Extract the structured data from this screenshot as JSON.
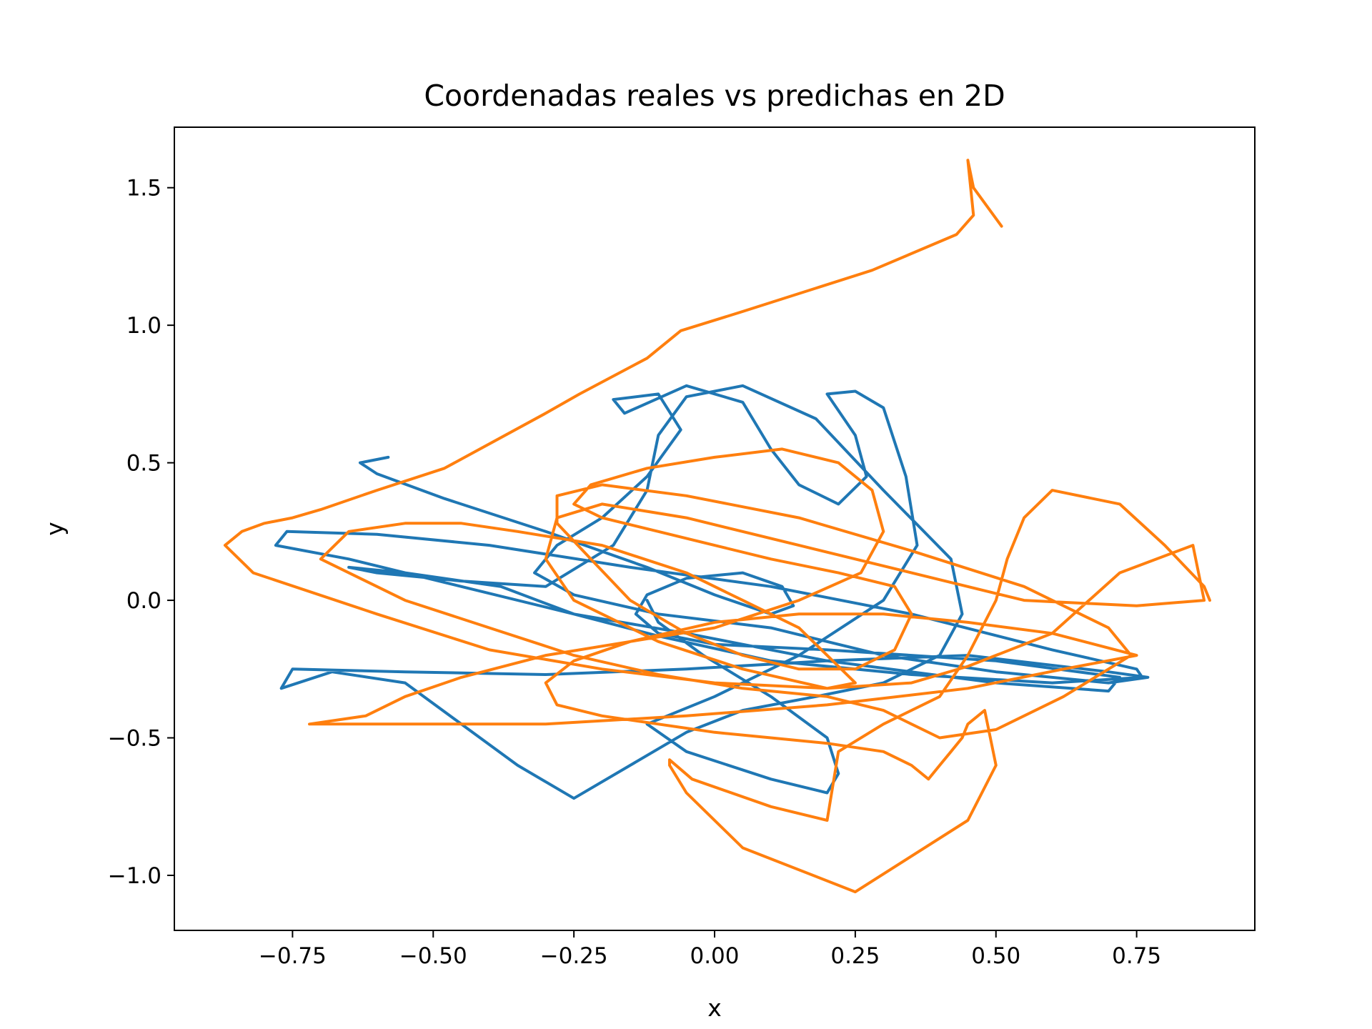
{
  "chart_data": {
    "type": "line",
    "title": "Coordenadas reales vs predichas en 2D",
    "xlabel": "x",
    "ylabel": "y",
    "xlim": [
      -0.96,
      0.96
    ],
    "ylim": [
      -1.2,
      1.72
    ],
    "x_ticks": [
      -0.75,
      -0.5,
      -0.25,
      0.0,
      0.25,
      0.5,
      0.75
    ],
    "x_tick_labels": [
      "−0.75",
      "−0.50",
      "−0.25",
      "0.00",
      "0.25",
      "0.50",
      "0.75"
    ],
    "y_ticks": [
      -1.0,
      -0.5,
      0.0,
      0.5,
      1.0,
      1.5
    ],
    "y_tick_labels": [
      "−1.0",
      "−0.5",
      "0.0",
      "0.5",
      "1.0",
      "1.5"
    ],
    "grid": false,
    "legend": "none",
    "series": [
      {
        "color": "#1f77b4",
        "x": [
          -0.58,
          -0.63,
          -0.6,
          -0.48,
          -0.3,
          -0.12,
          0.0,
          0.1,
          0.14,
          0.12,
          0.05,
          -0.05,
          -0.12,
          -0.14,
          -0.1,
          0.0,
          0.2,
          0.5,
          0.72,
          0.7,
          0.5,
          0.2,
          -0.05,
          -0.25,
          -0.45,
          -0.65,
          -0.78,
          -0.76,
          -0.6,
          -0.4,
          -0.15,
          0.1,
          0.35,
          0.6,
          0.75,
          0.76,
          0.6,
          0.35,
          0.1,
          -0.1,
          -0.25,
          -0.38,
          -0.55,
          -0.65,
          -0.6,
          -0.45,
          -0.3,
          -0.18,
          -0.12,
          -0.1,
          -0.05,
          0.05,
          0.18,
          0.3,
          0.42,
          0.44,
          0.4,
          0.3,
          0.18,
          0.05,
          -0.05,
          -0.15,
          -0.25,
          -0.35,
          -0.45,
          -0.55,
          -0.68,
          -0.77,
          -0.75,
          -0.55,
          -0.3,
          -0.05,
          0.2,
          0.45,
          0.7,
          0.77,
          0.7,
          0.5,
          0.3,
          0.1,
          -0.1,
          -0.25,
          -0.32,
          -0.28,
          -0.2,
          -0.12,
          -0.06,
          -0.1,
          -0.18,
          -0.16,
          -0.05,
          0.05,
          0.1,
          0.15,
          0.22,
          0.27,
          0.25,
          0.2,
          0.25,
          0.3,
          0.34,
          0.36,
          0.3,
          0.15,
          0.0,
          -0.12,
          -0.05,
          0.1,
          0.2,
          0.22,
          0.2,
          0.1,
          -0.02,
          -0.1,
          -0.12
        ],
        "y": [
          0.52,
          0.5,
          0.46,
          0.37,
          0.25,
          0.12,
          0.02,
          -0.05,
          -0.02,
          0.05,
          0.1,
          0.08,
          0.02,
          -0.05,
          -0.12,
          -0.16,
          -0.18,
          -0.22,
          -0.28,
          -0.33,
          -0.3,
          -0.22,
          -0.12,
          -0.05,
          0.05,
          0.15,
          0.2,
          0.25,
          0.24,
          0.2,
          0.12,
          0.05,
          -0.05,
          -0.18,
          -0.25,
          -0.28,
          -0.3,
          -0.27,
          -0.22,
          -0.13,
          -0.05,
          0.05,
          0.1,
          0.12,
          0.1,
          0.07,
          0.05,
          0.2,
          0.4,
          0.6,
          0.74,
          0.78,
          0.66,
          0.4,
          0.15,
          -0.05,
          -0.2,
          -0.3,
          -0.35,
          -0.4,
          -0.48,
          -0.6,
          -0.72,
          -0.6,
          -0.45,
          -0.3,
          -0.26,
          -0.32,
          -0.25,
          -0.26,
          -0.27,
          -0.25,
          -0.22,
          -0.2,
          -0.26,
          -0.28,
          -0.3,
          -0.26,
          -0.2,
          -0.1,
          -0.05,
          0.02,
          0.1,
          0.2,
          0.3,
          0.45,
          0.62,
          0.75,
          0.73,
          0.68,
          0.78,
          0.72,
          0.55,
          0.42,
          0.35,
          0.45,
          0.6,
          0.75,
          0.76,
          0.7,
          0.45,
          0.2,
          0.0,
          -0.2,
          -0.35,
          -0.45,
          -0.55,
          -0.65,
          -0.7,
          -0.63,
          -0.5,
          -0.35,
          -0.2,
          -0.08,
          0.0
        ]
      },
      {
        "color": "#ff7f0e",
        "x": [
          0.51,
          0.46,
          0.45,
          0.46,
          0.43,
          0.28,
          0.05,
          -0.06,
          -0.12,
          -0.24,
          -0.3,
          -0.48,
          -0.6,
          -0.7,
          -0.75,
          -0.8,
          -0.84,
          -0.87,
          -0.82,
          -0.6,
          -0.4,
          -0.2,
          0.0,
          0.2,
          0.35,
          0.45,
          0.6,
          0.72,
          0.85,
          0.87,
          0.75,
          0.55,
          0.35,
          0.15,
          -0.05,
          -0.2,
          -0.28,
          -0.3,
          -0.25,
          -0.1,
          0.05,
          0.2,
          0.25,
          0.2,
          0.15,
          0.05,
          -0.05,
          -0.2,
          -0.35,
          -0.45,
          -0.55,
          -0.65,
          -0.7,
          -0.55,
          -0.4,
          -0.25,
          -0.1,
          0.05,
          0.2,
          0.3,
          0.35,
          0.4,
          0.5,
          0.62,
          0.74,
          0.7,
          0.55,
          0.35,
          0.15,
          -0.05,
          -0.2,
          -0.28,
          -0.28,
          -0.22,
          -0.15,
          -0.05,
          0.05,
          0.15,
          0.25,
          0.32,
          0.35,
          0.32,
          0.22,
          0.1,
          0.0,
          -0.1,
          -0.2,
          -0.25,
          -0.22,
          -0.12,
          0.0,
          0.12,
          0.22,
          0.28,
          0.3,
          0.26,
          0.15,
          0.0,
          -0.15,
          -0.3,
          -0.45,
          -0.55,
          -0.62,
          -0.72,
          -0.55,
          -0.3,
          -0.05,
          0.2,
          0.45,
          0.62,
          0.75,
          0.6,
          0.45,
          0.3,
          0.15,
          0.0,
          -0.15,
          -0.25,
          -0.3,
          -0.28,
          -0.2,
          -0.1,
          0.0,
          0.1,
          0.2,
          0.3,
          0.35,
          0.38,
          0.4,
          0.42,
          0.44,
          0.45,
          0.48,
          0.5,
          0.45,
          0.25,
          0.05,
          -0.05,
          -0.08,
          -0.08,
          -0.04,
          0.1,
          0.2,
          0.22,
          0.3,
          0.4,
          0.45,
          0.5,
          0.52,
          0.55,
          0.6,
          0.72,
          0.8,
          0.87,
          0.88
        ],
        "y": [
          1.36,
          1.5,
          1.6,
          1.4,
          1.33,
          1.2,
          1.05,
          0.98,
          0.88,
          0.75,
          0.68,
          0.48,
          0.4,
          0.33,
          0.3,
          0.28,
          0.25,
          0.2,
          0.1,
          -0.05,
          -0.18,
          -0.25,
          -0.3,
          -0.32,
          -0.3,
          -0.24,
          -0.12,
          0.1,
          0.2,
          0.0,
          -0.02,
          0.0,
          0.1,
          0.2,
          0.3,
          0.35,
          0.3,
          0.15,
          0.0,
          -0.15,
          -0.25,
          -0.32,
          -0.3,
          -0.2,
          -0.1,
          0.0,
          0.1,
          0.2,
          0.25,
          0.28,
          0.28,
          0.25,
          0.15,
          0.0,
          -0.1,
          -0.2,
          -0.27,
          -0.32,
          -0.35,
          -0.4,
          -0.45,
          -0.5,
          -0.47,
          -0.35,
          -0.2,
          -0.1,
          0.05,
          0.18,
          0.3,
          0.38,
          0.42,
          0.38,
          0.28,
          0.15,
          0.0,
          -0.12,
          -0.2,
          -0.25,
          -0.25,
          -0.18,
          -0.05,
          0.05,
          0.1,
          0.15,
          0.2,
          0.25,
          0.3,
          0.35,
          0.42,
          0.48,
          0.52,
          0.55,
          0.5,
          0.4,
          0.25,
          0.1,
          0.0,
          -0.1,
          -0.15,
          -0.2,
          -0.28,
          -0.35,
          -0.42,
          -0.45,
          -0.45,
          -0.45,
          -0.42,
          -0.38,
          -0.32,
          -0.25,
          -0.2,
          -0.12,
          -0.08,
          -0.05,
          -0.05,
          -0.08,
          -0.15,
          -0.22,
          -0.3,
          -0.38,
          -0.42,
          -0.45,
          -0.48,
          -0.5,
          -0.52,
          -0.55,
          -0.6,
          -0.65,
          -0.6,
          -0.55,
          -0.5,
          -0.45,
          -0.4,
          -0.6,
          -0.8,
          -1.06,
          -0.9,
          -0.7,
          -0.6,
          -0.58,
          -0.65,
          -0.75,
          -0.8,
          -0.55,
          -0.45,
          -0.35,
          -0.2,
          0.0,
          0.15,
          0.3,
          0.4,
          0.35,
          0.2,
          0.05,
          0.0
        ]
      }
    ]
  }
}
